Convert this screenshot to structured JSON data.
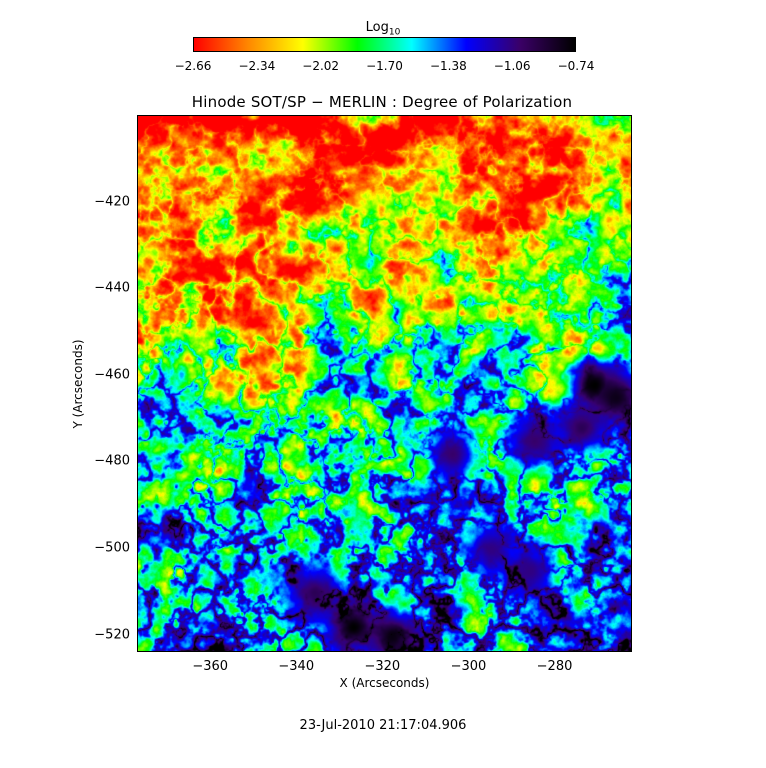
{
  "colorbar": {
    "label_main": "Log",
    "label_sub": "10",
    "ticks": [
      "−2.66",
      "−2.34",
      "−2.02",
      "−1.70",
      "−1.38",
      "−1.06",
      "−0.74"
    ],
    "range": [
      -2.66,
      -0.74
    ],
    "colors": [
      "#ff0000",
      "#ff8800",
      "#ffff00",
      "#00ff00",
      "#00ffff",
      "#0000ff",
      "#3a0066",
      "#000000"
    ]
  },
  "chart_data": {
    "type": "heatmap",
    "title": "Hinode SOT/SP − MERLIN : Degree of Polarization",
    "xlabel": "X (Arcseconds)",
    "ylabel": "Y (Arcseconds)",
    "xlim": [
      -377,
      -262
    ],
    "ylim": [
      -524,
      -400
    ],
    "x_ticks": [
      -360,
      -340,
      -320,
      -300,
      -280
    ],
    "y_ticks": [
      -420,
      -440,
      -460,
      -480,
      -500,
      -520
    ],
    "x_tick_labels": [
      "−360",
      "−340",
      "−320",
      "−300",
      "−280"
    ],
    "y_tick_labels": [
      "−420",
      "−440",
      "−460",
      "−480",
      "−500",
      "−520"
    ],
    "value_label": "Log10 Degree of Polarization",
    "value_range": [
      -2.66,
      -0.74
    ],
    "features": [
      {
        "x": -271,
        "y": -462,
        "value": -0.74
      },
      {
        "x": -266,
        "y": -465,
        "value": -0.8
      },
      {
        "x": -274,
        "y": -472,
        "value": -0.95
      },
      {
        "x": -327,
        "y": -518,
        "value": -0.74
      },
      {
        "x": -318,
        "y": -520,
        "value": -0.78
      },
      {
        "x": -336,
        "y": -510,
        "value": -0.95
      },
      {
        "x": -304,
        "y": -478,
        "value": -1.0
      },
      {
        "x": -285,
        "y": -475,
        "value": -1.0
      },
      {
        "x": -295,
        "y": -500,
        "value": -1.06
      },
      {
        "x": -286,
        "y": -505,
        "value": -1.06
      }
    ]
  },
  "footer": {
    "timestamp": "23-Jul-2010 21:17:04.906"
  }
}
